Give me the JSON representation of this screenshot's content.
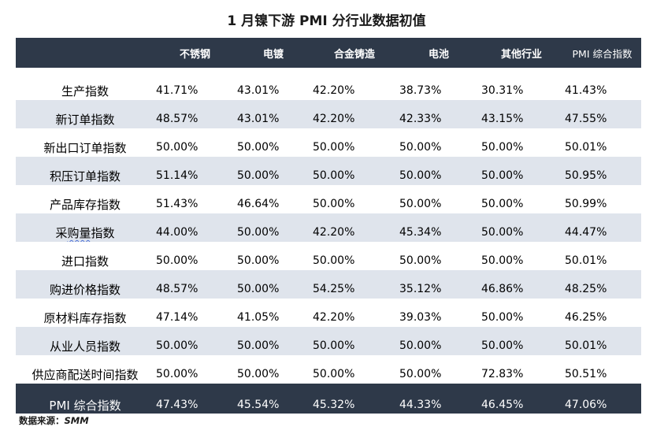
{
  "title": "1 月镍下游 PMI 分行业数据初值",
  "columns": [
    "不锈钢",
    "电镀",
    "合金铸造",
    "电池",
    "其他行业",
    "PMI 综合指数"
  ],
  "rows": [
    {
      "label": "生产指数",
      "values": [
        "41.71%",
        "43.01%",
        "42.20%",
        "38.73%",
        "30.31%",
        "41.43%"
      ]
    },
    {
      "label": "新订单指数",
      "values": [
        "48.57%",
        "43.01%",
        "42.20%",
        "42.33%",
        "43.15%",
        "47.55%"
      ]
    },
    {
      "label": "新出口订单指数",
      "values": [
        "50.00%",
        "50.00%",
        "50.00%",
        "50.00%",
        "50.00%",
        "50.01%"
      ]
    },
    {
      "label": "积压订单指数",
      "values": [
        "51.14%",
        "50.00%",
        "50.00%",
        "50.00%",
        "50.00%",
        "50.95%"
      ]
    },
    {
      "label": "产品库存指数",
      "values": [
        "51.43%",
        "46.64%",
        "50.00%",
        "50.00%",
        "50.00%",
        "50.99%"
      ]
    },
    {
      "label": "采购量指数",
      "values": [
        "44.00%",
        "50.00%",
        "42.20%",
        "45.34%",
        "50.00%",
        "44.47%"
      ]
    },
    {
      "label": "进口指数",
      "values": [
        "50.00%",
        "50.00%",
        "50.00%",
        "50.00%",
        "50.00%",
        "50.01%"
      ]
    },
    {
      "label": "购进价格指数",
      "values": [
        "48.57%",
        "50.00%",
        "54.25%",
        "35.12%",
        "46.86%",
        "48.25%"
      ]
    },
    {
      "label": "原材料库存指数",
      "values": [
        "47.14%",
        "41.05%",
        "42.20%",
        "39.03%",
        "50.00%",
        "46.25%"
      ]
    },
    {
      "label": "从业人员指数",
      "values": [
        "50.00%",
        "50.00%",
        "50.00%",
        "50.00%",
        "50.00%",
        "50.01%"
      ]
    },
    {
      "label": "供应商配送时间指数",
      "values": [
        "50.00%",
        "50.00%",
        "50.00%",
        "50.00%",
        "72.83%",
        "50.51%"
      ]
    }
  ],
  "total": {
    "label": "PMI 综合指数",
    "values": [
      "47.43%",
      "45.54%",
      "45.32%",
      "44.33%",
      "46.45%",
      "47.06%"
    ]
  },
  "source": {
    "label": "数据来源：",
    "name": "SMM"
  },
  "colors": {
    "header_bg": "#2e3949",
    "shade_bg": "#dfe4ec"
  }
}
